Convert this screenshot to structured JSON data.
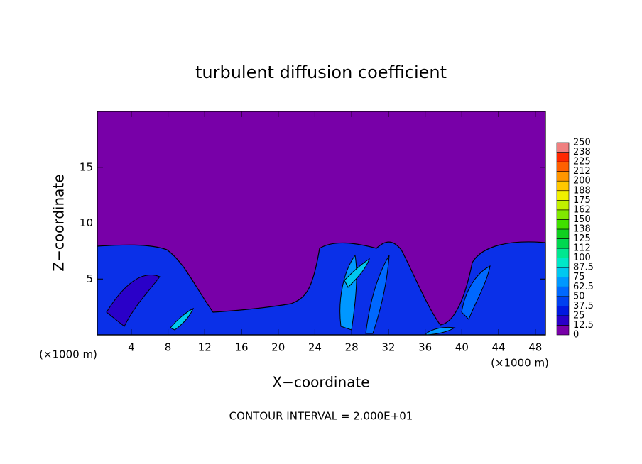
{
  "chart_data": {
    "type": "contour",
    "title": "turbulent diffusion coefficient",
    "xlabel": "X−coordinate",
    "ylabel": "Z−coordinate",
    "x_unit_label": "(×1000 m)",
    "annotation": "CONTOUR INTERVAL = 2.000E+01",
    "xlim": [
      0.3,
      49.1
    ],
    "xticks": [
      4,
      8,
      12,
      16,
      20,
      24,
      28,
      32,
      36,
      40,
      44,
      48
    ],
    "ylim": [
      0,
      20
    ],
    "yticks": [
      5,
      10,
      15
    ],
    "colorbar": {
      "levels": [
        0,
        12.5,
        25,
        37.5,
        50,
        62.5,
        75,
        87.5,
        100,
        112,
        125,
        138,
        150,
        162,
        175,
        188,
        200,
        212,
        225,
        238,
        250
      ],
      "colors": [
        "#7800a8",
        "#2a00c8",
        "#0018e0",
        "#0040f0",
        "#0068ff",
        "#0098ff",
        "#00c8f0",
        "#00e8c8",
        "#00e890",
        "#00d850",
        "#10d020",
        "#40e000",
        "#80e800",
        "#c0f000",
        "#f0f000",
        "#ffc800",
        "#ff9600",
        "#ff6000",
        "#ff2800",
        "#f08080"
      ]
    }
  }
}
